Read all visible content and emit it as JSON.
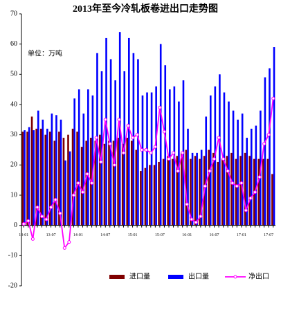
{
  "chart_data": {
    "type": "bar_line",
    "title": "2013年至今冷轧板卷进出口走势图",
    "unit_label": "单位：万吨",
    "categories": [
      "13-01",
      null,
      null,
      null,
      null,
      null,
      "13-07",
      null,
      null,
      null,
      null,
      null,
      "14-01",
      null,
      null,
      null,
      null,
      null,
      "14-07",
      null,
      null,
      null,
      null,
      null,
      "15-01",
      null,
      null,
      null,
      null,
      null,
      "15-07",
      null,
      null,
      null,
      null,
      null,
      "16-01",
      null,
      null,
      null,
      null,
      null,
      "16-07",
      null,
      null,
      null,
      null,
      null,
      "17-01",
      null,
      null,
      null,
      null,
      null,
      "17-07",
      null
    ],
    "series": [
      {
        "name": "进口量",
        "type": "bar",
        "color": "#800000",
        "values": [
          31,
          31,
          36,
          32,
          32,
          30,
          31,
          28,
          31,
          29,
          30,
          32,
          31,
          26,
          28,
          29,
          28,
          30,
          27,
          28,
          28,
          29,
          27,
          29,
          28,
          25,
          18,
          19,
          20,
          20,
          21,
          22,
          23,
          22,
          23,
          24,
          25,
          22,
          23,
          22,
          23,
          25,
          24,
          21,
          22,
          23,
          24,
          22,
          23,
          24,
          23,
          22,
          22,
          22,
          22,
          17
        ]
      },
      {
        "name": "出口量",
        "type": "bar",
        "color": "#0000ff",
        "values": [
          31.5,
          32.5,
          31.5,
          38,
          35,
          32,
          37,
          36.5,
          35,
          21.5,
          24.5,
          42,
          45,
          37,
          45,
          43,
          57,
          51,
          62,
          55,
          48,
          64,
          51,
          62,
          57,
          55,
          43,
          44,
          44,
          46,
          60,
          53,
          45,
          46,
          41,
          48,
          32,
          24,
          24,
          25,
          36,
          43,
          46,
          50,
          44,
          41,
          38,
          35,
          37,
          29,
          32,
          33,
          38,
          49,
          52,
          59
        ]
      },
      {
        "name": "净出口",
        "type": "line",
        "color": "#ff00ff",
        "values": [
          0.5,
          1.5,
          -4.5,
          6,
          3,
          2,
          6,
          8.5,
          4,
          -7.5,
          -5.5,
          10,
          14,
          11,
          17,
          14,
          29,
          21,
          35,
          27,
          20,
          35,
          24,
          33,
          29,
          30,
          25,
          25,
          24,
          26,
          39,
          31,
          22,
          24,
          18,
          24,
          7,
          2,
          1,
          3,
          13,
          18,
          22,
          29,
          22,
          18,
          14,
          13,
          14,
          5,
          9,
          11,
          16,
          27,
          30,
          42
        ]
      }
    ],
    "ylim": [
      -20,
      70
    ],
    "yticks": [
      -20,
      -10,
      0,
      10,
      20,
      30,
      40,
      50,
      60,
      70
    ],
    "grid": false
  }
}
